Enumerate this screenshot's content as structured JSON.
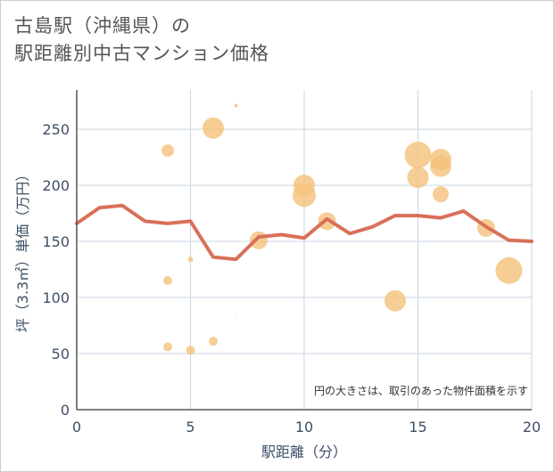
{
  "page": {
    "title_line1": "古島駅（沖縄県）の",
    "title_line2": "駅距離別中古マンション価格"
  },
  "chart_data": {
    "type": "scatter",
    "xlabel": "駅距離（分）",
    "ylabel": "坪（3.3㎡）単価（万円）",
    "xlim": [
      0,
      20
    ],
    "ylim": [
      0,
      285
    ],
    "xticks": [
      0,
      5,
      10,
      15,
      20
    ],
    "yticks": [
      0,
      50,
      100,
      150,
      200,
      250
    ],
    "grid": true,
    "note": "円の大きさは、取引のあった物件面積を示す",
    "colors": {
      "bubble": "#f4c27a",
      "line": "#d9705a",
      "grid": "#c9d6e3",
      "text": "#3d4f66"
    },
    "bubbles": [
      {
        "x": 4,
        "y": 231,
        "size": 7
      },
      {
        "x": 4,
        "y": 115,
        "size": 5
      },
      {
        "x": 4,
        "y": 56,
        "size": 5
      },
      {
        "x": 5,
        "y": 134,
        "size": 3
      },
      {
        "x": 5,
        "y": 53,
        "size": 5
      },
      {
        "x": 6,
        "y": 251,
        "size": 12
      },
      {
        "x": 6,
        "y": 61,
        "size": 5
      },
      {
        "x": 7,
        "y": 271,
        "size": 2
      },
      {
        "x": 7,
        "y": 82,
        "size": 0.5
      },
      {
        "x": 8,
        "y": 151,
        "size": 10
      },
      {
        "x": 10,
        "y": 200,
        "size": 12
      },
      {
        "x": 10,
        "y": 191,
        "size": 13
      },
      {
        "x": 11,
        "y": 168,
        "size": 10
      },
      {
        "x": 14,
        "y": 97,
        "size": 12
      },
      {
        "x": 15,
        "y": 227,
        "size": 15
      },
      {
        "x": 15,
        "y": 207,
        "size": 12
      },
      {
        "x": 16,
        "y": 223,
        "size": 12
      },
      {
        "x": 16,
        "y": 217,
        "size": 12
      },
      {
        "x": 16,
        "y": 192,
        "size": 9
      },
      {
        "x": 18,
        "y": 162,
        "size": 10
      },
      {
        "x": 19,
        "y": 124,
        "size": 15
      }
    ],
    "average_line": {
      "x": [
        0,
        1,
        2,
        3,
        4,
        5,
        6,
        7,
        8,
        9,
        10,
        11,
        12,
        13,
        14,
        15,
        16,
        17,
        18,
        19,
        20
      ],
      "y": [
        166,
        180,
        182,
        168,
        166,
        168,
        136,
        134,
        154,
        156,
        153,
        170,
        157,
        163,
        173,
        173,
        171,
        177,
        163,
        151,
        150
      ]
    }
  }
}
